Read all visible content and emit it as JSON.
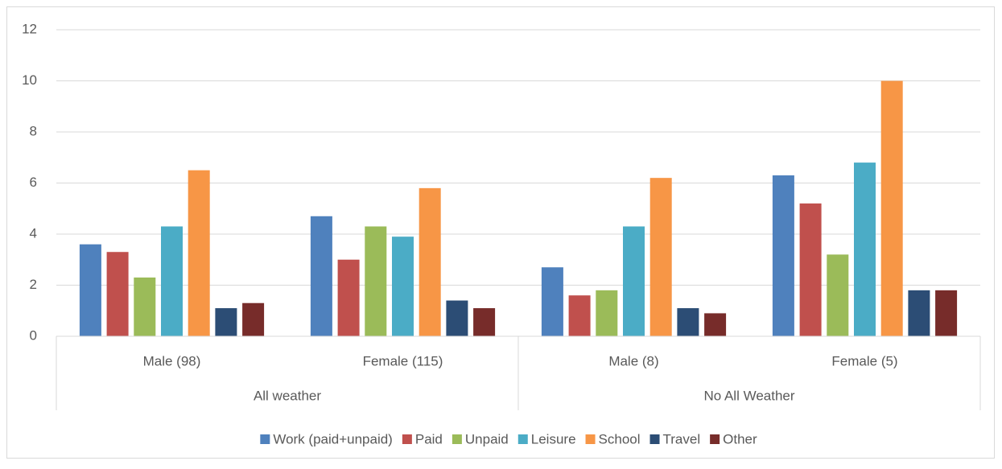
{
  "chart_data": {
    "type": "bar",
    "groups": [
      {
        "label": "All weather",
        "categories": [
          "Male (98)",
          "Female (115)"
        ]
      },
      {
        "label": "No All Weather",
        "categories": [
          "Male (8)",
          "Female (5)"
        ]
      }
    ],
    "series": [
      {
        "name": "Work (paid+unpaid)",
        "color": "#4f81bd",
        "values": [
          3.6,
          4.7,
          2.7,
          6.3
        ]
      },
      {
        "name": "Paid",
        "color": "#c0504d",
        "values": [
          3.3,
          3.0,
          1.6,
          5.2
        ]
      },
      {
        "name": "Unpaid",
        "color": "#9bbb59",
        "values": [
          2.3,
          4.3,
          1.8,
          3.2
        ]
      },
      {
        "name": "Leisure",
        "color": "#4bacc6",
        "values": [
          4.3,
          3.9,
          4.3,
          6.8
        ]
      },
      {
        "name": "School",
        "color": "#f79646",
        "values": [
          6.5,
          5.8,
          6.2,
          10.0
        ]
      },
      {
        "name": "Travel",
        "color": "#2c4d75",
        "values": [
          1.1,
          1.4,
          1.1,
          1.8
        ]
      },
      {
        "name": "Other",
        "color": "#772c2a",
        "values": [
          1.3,
          1.1,
          0.9,
          1.8
        ]
      }
    ],
    "ylim": [
      0,
      12
    ],
    "yticks": [
      0,
      2,
      4,
      6,
      8,
      10,
      12
    ],
    "grid": true,
    "legend": "bottom"
  }
}
